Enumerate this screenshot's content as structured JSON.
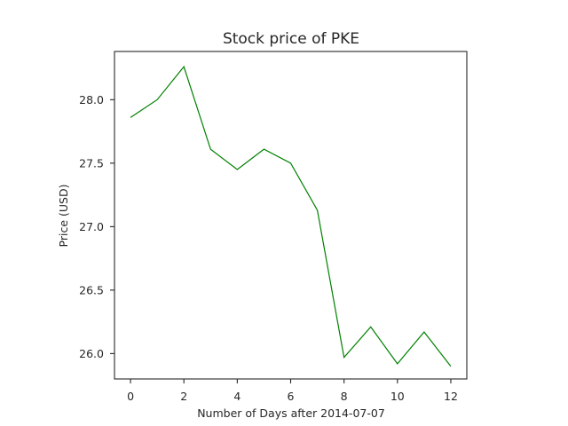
{
  "chart_data": {
    "type": "line",
    "title": "Stock price of PKE",
    "xlabel": "Number of Days after 2014-07-07",
    "ylabel": "Price (USD)",
    "x": [
      0,
      1,
      2,
      3,
      4,
      5,
      6,
      7,
      8,
      9,
      10,
      11,
      12
    ],
    "series": [
      {
        "values": [
          27.86,
          28.0,
          28.26,
          27.61,
          27.45,
          27.61,
          27.5,
          27.13,
          25.97,
          26.21,
          25.92,
          26.17,
          25.9
        ],
        "color": "#008000"
      }
    ],
    "xlim": [
      -0.6,
      12.6
    ],
    "ylim": [
      25.8,
      28.38
    ],
    "xticks": [
      0,
      2,
      4,
      6,
      8,
      10,
      12
    ],
    "xtick_labels": [
      "0",
      "2",
      "4",
      "6",
      "8",
      "10",
      "12"
    ],
    "yticks": [
      26.0,
      26.5,
      27.0,
      27.5,
      28.0
    ],
    "ytick_labels": [
      "26.0",
      "26.5",
      "27.0",
      "27.5",
      "28.0"
    ],
    "grid": false,
    "legend": "none"
  }
}
